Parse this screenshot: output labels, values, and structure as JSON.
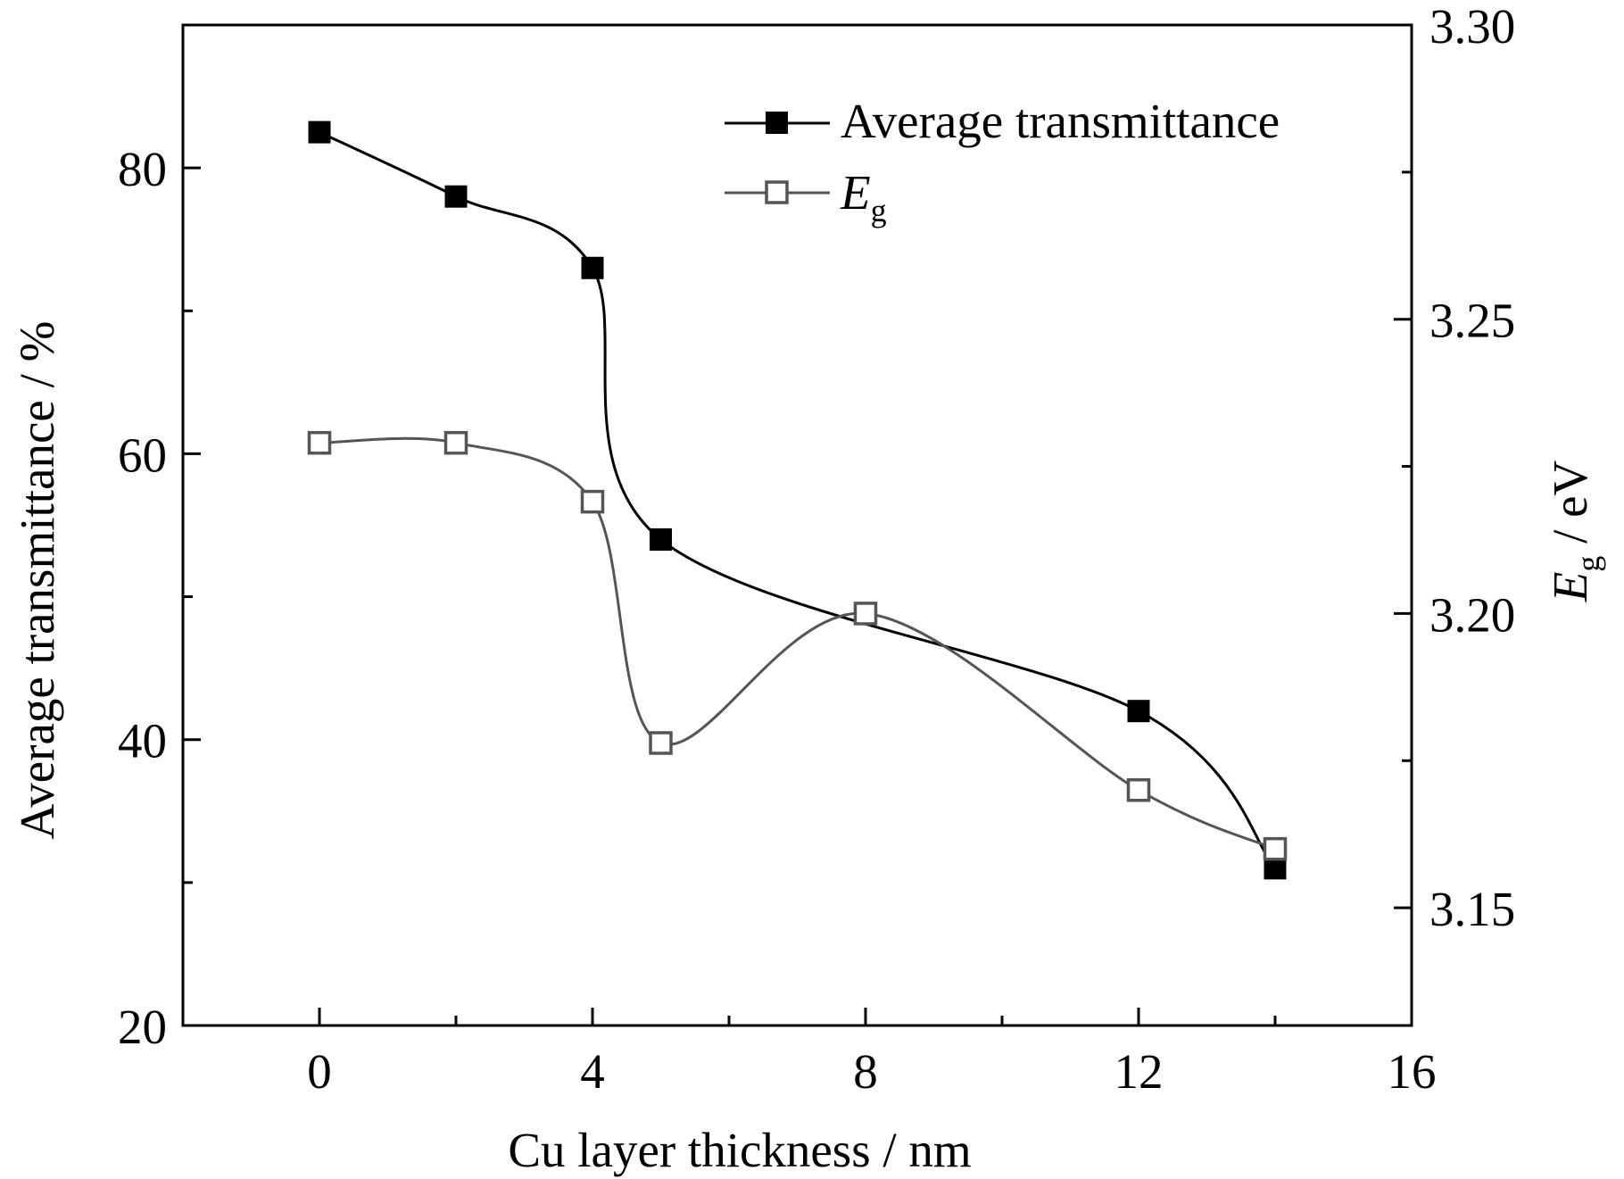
{
  "chart_data": {
    "type": "line",
    "xlabel": "Cu layer thickness / nm",
    "ylabel_left": "Average transmittance / %",
    "ylabel_right": {
      "symbol": "E",
      "subscript": "g",
      "unit": " / eV"
    },
    "xlim": [
      -2,
      16
    ],
    "ylim_left": [
      20,
      90
    ],
    "ylim_right": [
      3.13,
      3.3
    ],
    "x_ticks": [
      0,
      4,
      8,
      12,
      16
    ],
    "y_left_ticks": [
      20,
      40,
      60,
      80
    ],
    "y_right_ticks": [
      "3.15",
      "3.20",
      "3.25",
      "3.30"
    ],
    "grid": false,
    "legend_position": "top-right",
    "series": [
      {
        "name": "Average transmittance",
        "axis": "left",
        "marker": "filled-square",
        "color": "#000000",
        "x": [
          0,
          2,
          4,
          5,
          12,
          14
        ],
        "y": [
          82.5,
          78.0,
          73.0,
          54.0,
          42.0,
          31.0
        ]
      },
      {
        "name": {
          "symbol": "E",
          "subscript": "g"
        },
        "axis": "right",
        "marker": "open-square",
        "color": "#555555",
        "x": [
          0,
          2,
          4,
          5,
          8,
          12,
          14
        ],
        "y": [
          3.229,
          3.229,
          3.219,
          3.178,
          3.2,
          3.17,
          3.16
        ]
      }
    ]
  }
}
